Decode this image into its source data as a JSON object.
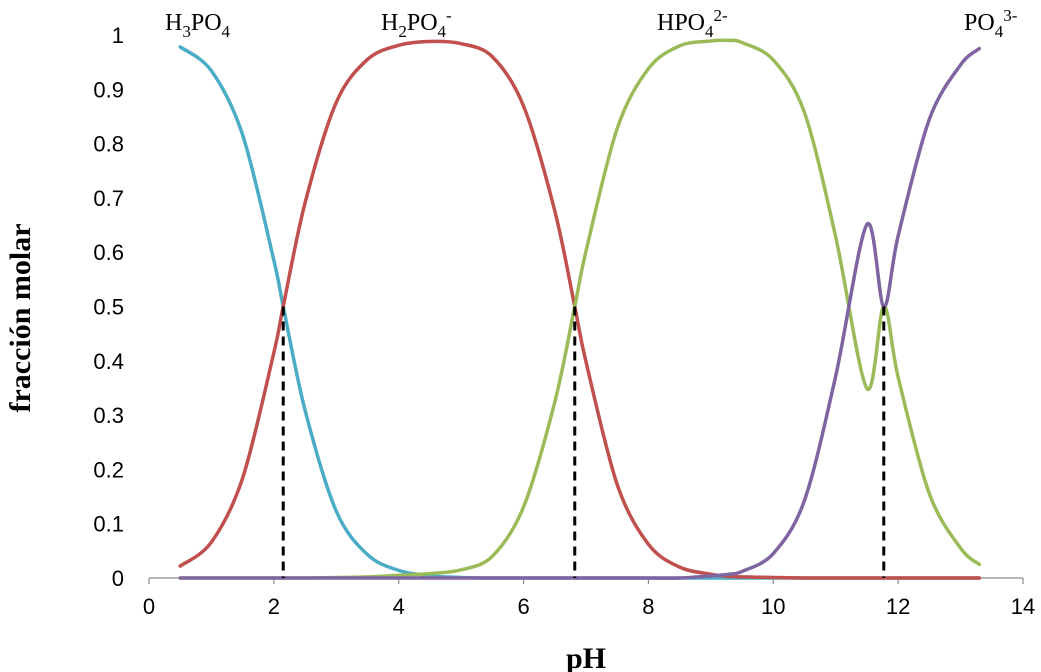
{
  "chart_data": {
    "type": "line",
    "title": "",
    "xlabel": "pH",
    "ylabel": "fracción molar",
    "xlim": [
      0,
      14
    ],
    "ylim": [
      0,
      1
    ],
    "x_ticks": [
      "0",
      "2",
      "4",
      "6",
      "8",
      "10",
      "12",
      "14"
    ],
    "y_ticks": [
      "0",
      "0.1",
      "0.2",
      "0.3",
      "0.4",
      "0.5",
      "0.6",
      "0.7",
      "0.8",
      "0.9",
      "1"
    ],
    "grid": false,
    "legend": "none",
    "pka": [
      2.15,
      6.82,
      11.77
    ],
    "x": [
      0.5,
      1.0,
      1.5,
      2.0,
      2.15,
      2.5,
      3.0,
      3.5,
      4.0,
      4.5,
      5.0,
      5.5,
      6.0,
      6.5,
      6.82,
      7.0,
      7.5,
      8.0,
      8.5,
      9.0,
      9.3,
      9.5,
      10.0,
      10.5,
      11.0,
      11.5,
      11.77,
      12.0,
      12.5,
      13.0,
      13.3
    ],
    "series": [
      {
        "name": "H3PO4",
        "color": "#4bacc6",
        "values": [
          0.978,
          0.934,
          0.816,
          0.585,
          0.5,
          0.309,
          0.123,
          0.043,
          0.014,
          0.004,
          0.001,
          0.0,
          0.0,
          0.0,
          0.0,
          0.0,
          0.0,
          0.0,
          0.0,
          0.0,
          0.0,
          0.0,
          0.0,
          0.0,
          0.0,
          0.0,
          0.0,
          0.0,
          0.0,
          0.0,
          0.0
        ]
      },
      {
        "name": "H2PO4-",
        "color": "#c0504d",
        "values": [
          0.022,
          0.066,
          0.184,
          0.415,
          0.5,
          0.691,
          0.876,
          0.955,
          0.981,
          0.988,
          0.984,
          0.96,
          0.869,
          0.676,
          0.5,
          0.398,
          0.172,
          0.062,
          0.02,
          0.007,
          0.003,
          0.002,
          0.001,
          0.0,
          0.0,
          0.0,
          0.0,
          0.0,
          0.0,
          0.0,
          0.0
        ]
      },
      {
        "name": "HPO42-",
        "color": "#9bbb59",
        "values": [
          0.0,
          0.0,
          0.0,
          0.0,
          0.0,
          0.0,
          0.001,
          0.002,
          0.005,
          0.008,
          0.015,
          0.04,
          0.131,
          0.324,
          0.5,
          0.602,
          0.828,
          0.938,
          0.98,
          0.989,
          0.99,
          0.986,
          0.954,
          0.857,
          0.628,
          0.349,
          0.5,
          0.37,
          0.155,
          0.055,
          0.025
        ]
      },
      {
        "name": "PO43-",
        "color": "#8064a2",
        "values": [
          0.0,
          0.0,
          0.0,
          0.0,
          0.0,
          0.0,
          0.0,
          0.0,
          0.0,
          0.0,
          0.0,
          0.0,
          0.0,
          0.0,
          0.0,
          0.0,
          0.0,
          0.0,
          0.0,
          0.004,
          0.007,
          0.012,
          0.045,
          0.143,
          0.372,
          0.651,
          0.5,
          0.63,
          0.845,
          0.945,
          0.975
        ]
      }
    ]
  },
  "labels": {
    "h3po4": {
      "pre": "H",
      "sub1": "3",
      "mid": "PO",
      "sub2": "4",
      "sup": ""
    },
    "h2po4": {
      "pre": "H",
      "sub1": "2",
      "mid": "PO",
      "sub2": "4",
      "sup": "-"
    },
    "hpo4": {
      "pre": "",
      "sub1": "",
      "mid": "HPO",
      "sub2": "4",
      "sup": "2-"
    },
    "po4": {
      "pre": "",
      "sub1": "",
      "mid": "PO",
      "sub2": "4",
      "sup": "3-"
    }
  }
}
